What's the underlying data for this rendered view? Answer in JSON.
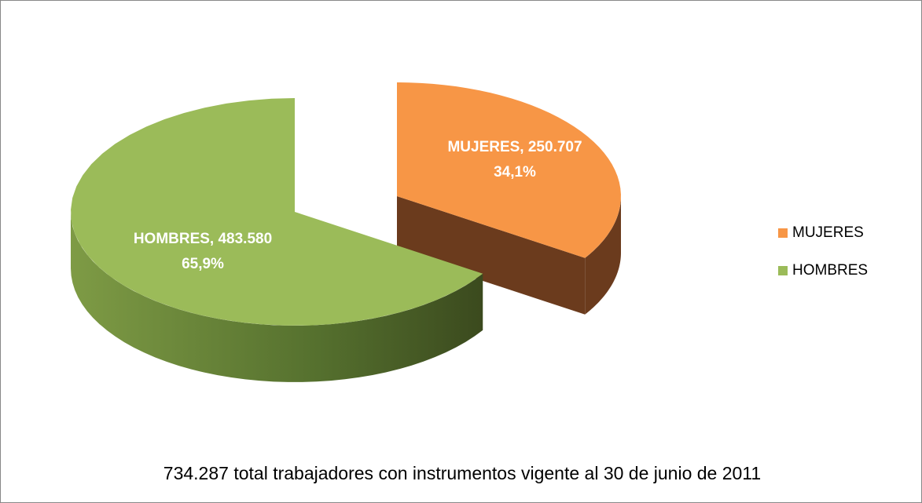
{
  "chart_data": {
    "type": "pie3d",
    "title": "734.287 total trabajadores con instrumentos vigente al 30 de junio de 2011",
    "categories": [
      "MUJERES",
      "HOMBRES"
    ],
    "values": [
      250707,
      483580
    ],
    "value_labels": [
      "MUJERES,  250.707",
      "HOMBRES, 483.580"
    ],
    "percentages": [
      34.1,
      65.9
    ],
    "percent_labels": [
      "34,1%",
      "65,9%"
    ],
    "colors": [
      "#f79646",
      "#9bbb59"
    ],
    "side_colors": [
      "#6b3b1d",
      "#55702e"
    ],
    "legend": "right"
  }
}
